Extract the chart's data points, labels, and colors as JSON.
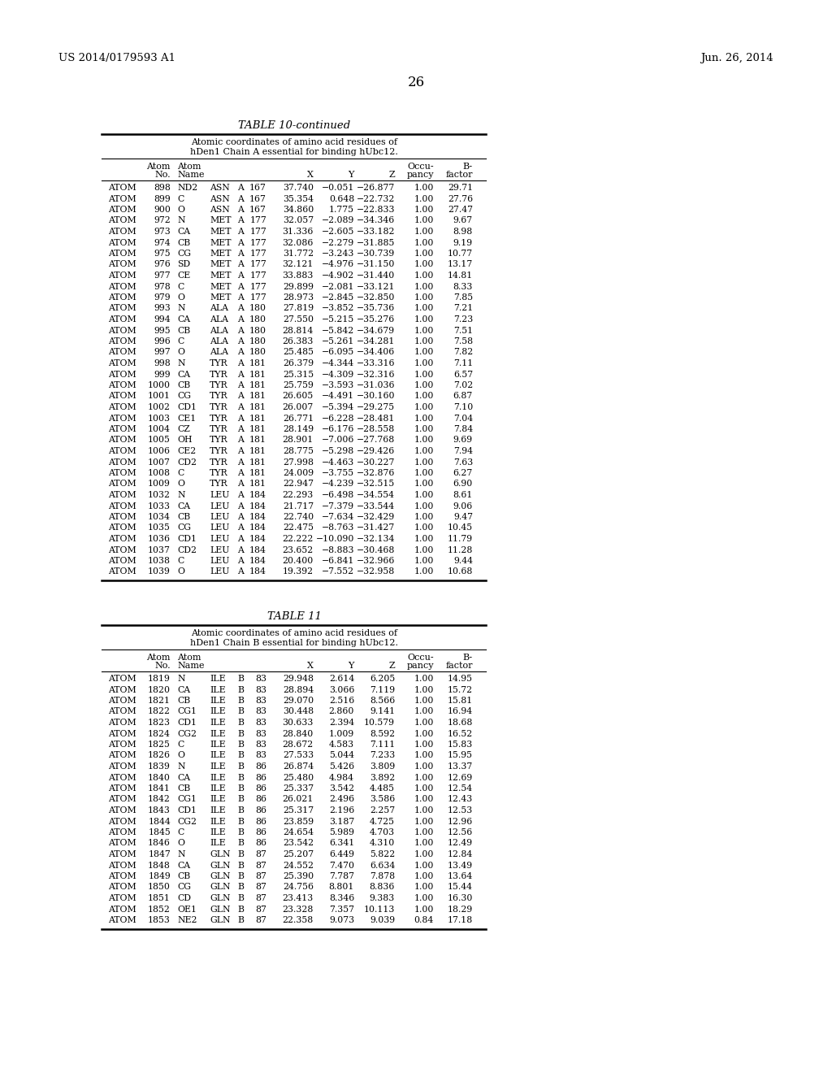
{
  "header_left": "US 2014/0179593 A1",
  "header_right": "Jun. 26, 2014",
  "page_number": "26",
  "table1_title": "TABLE 10-continued",
  "table1_subtitle1": "Atomic coordinates of amino acid residues of",
  "table1_subtitle2": "hDen1 Chain A essential for binding hUbc12.",
  "table2_title": "TABLE 11",
  "table2_subtitle1": "Atomic coordinates of amino acid residues of",
  "table2_subtitle2": "hDen1 Chain B essential for binding hUbc12.",
  "table1_data": [
    [
      "ATOM",
      "898",
      "ND2",
      "ASN",
      "A",
      "167",
      "37.740",
      "−0.051",
      "−26.877",
      "1.00",
      "29.71"
    ],
    [
      "ATOM",
      "899",
      "C",
      "ASN",
      "A",
      "167",
      "35.354",
      "0.648",
      "−22.732",
      "1.00",
      "27.76"
    ],
    [
      "ATOM",
      "900",
      "O",
      "ASN",
      "A",
      "167",
      "34.860",
      "1.775",
      "−22.833",
      "1.00",
      "27.47"
    ],
    [
      "ATOM",
      "972",
      "N",
      "MET",
      "A",
      "177",
      "32.057",
      "−2.089",
      "−34.346",
      "1.00",
      "9.67"
    ],
    [
      "ATOM",
      "973",
      "CA",
      "MET",
      "A",
      "177",
      "31.336",
      "−2.605",
      "−33.182",
      "1.00",
      "8.98"
    ],
    [
      "ATOM",
      "974",
      "CB",
      "MET",
      "A",
      "177",
      "32.086",
      "−2.279",
      "−31.885",
      "1.00",
      "9.19"
    ],
    [
      "ATOM",
      "975",
      "CG",
      "MET",
      "A",
      "177",
      "31.772",
      "−3.243",
      "−30.739",
      "1.00",
      "10.77"
    ],
    [
      "ATOM",
      "976",
      "SD",
      "MET",
      "A",
      "177",
      "32.121",
      "−4.976",
      "−31.150",
      "1.00",
      "13.17"
    ],
    [
      "ATOM",
      "977",
      "CE",
      "MET",
      "A",
      "177",
      "33.883",
      "−4.902",
      "−31.440",
      "1.00",
      "14.81"
    ],
    [
      "ATOM",
      "978",
      "C",
      "MET",
      "A",
      "177",
      "29.899",
      "−2.081",
      "−33.121",
      "1.00",
      "8.33"
    ],
    [
      "ATOM",
      "979",
      "O",
      "MET",
      "A",
      "177",
      "28.973",
      "−2.845",
      "−32.850",
      "1.00",
      "7.85"
    ],
    [
      "ATOM",
      "993",
      "N",
      "ALA",
      "A",
      "180",
      "27.819",
      "−3.852",
      "−35.736",
      "1.00",
      "7.21"
    ],
    [
      "ATOM",
      "994",
      "CA",
      "ALA",
      "A",
      "180",
      "27.550",
      "−5.215",
      "−35.276",
      "1.00",
      "7.23"
    ],
    [
      "ATOM",
      "995",
      "CB",
      "ALA",
      "A",
      "180",
      "28.814",
      "−5.842",
      "−34.679",
      "1.00",
      "7.51"
    ],
    [
      "ATOM",
      "996",
      "C",
      "ALA",
      "A",
      "180",
      "26.383",
      "−5.261",
      "−34.281",
      "1.00",
      "7.58"
    ],
    [
      "ATOM",
      "997",
      "O",
      "ALA",
      "A",
      "180",
      "25.485",
      "−6.095",
      "−34.406",
      "1.00",
      "7.82"
    ],
    [
      "ATOM",
      "998",
      "N",
      "TYR",
      "A",
      "181",
      "26.379",
      "−4.344",
      "−33.316",
      "1.00",
      "7.11"
    ],
    [
      "ATOM",
      "999",
      "CA",
      "TYR",
      "A",
      "181",
      "25.315",
      "−4.309",
      "−32.316",
      "1.00",
      "6.57"
    ],
    [
      "ATOM",
      "1000",
      "CB",
      "TYR",
      "A",
      "181",
      "25.759",
      "−3.593",
      "−31.036",
      "1.00",
      "7.02"
    ],
    [
      "ATOM",
      "1001",
      "CG",
      "TYR",
      "A",
      "181",
      "26.605",
      "−4.491",
      "−30.160",
      "1.00",
      "6.87"
    ],
    [
      "ATOM",
      "1002",
      "CD1",
      "TYR",
      "A",
      "181",
      "26.007",
      "−5.394",
      "−29.275",
      "1.00",
      "7.10"
    ],
    [
      "ATOM",
      "1003",
      "CE1",
      "TYR",
      "A",
      "181",
      "26.771",
      "−6.228",
      "−28.481",
      "1.00",
      "7.04"
    ],
    [
      "ATOM",
      "1004",
      "CZ",
      "TYR",
      "A",
      "181",
      "28.149",
      "−6.176",
      "−28.558",
      "1.00",
      "7.84"
    ],
    [
      "ATOM",
      "1005",
      "OH",
      "TYR",
      "A",
      "181",
      "28.901",
      "−7.006",
      "−27.768",
      "1.00",
      "9.69"
    ],
    [
      "ATOM",
      "1006",
      "CE2",
      "TYR",
      "A",
      "181",
      "28.775",
      "−5.298",
      "−29.426",
      "1.00",
      "7.94"
    ],
    [
      "ATOM",
      "1007",
      "CD2",
      "TYR",
      "A",
      "181",
      "27.998",
      "−4.463",
      "−30.227",
      "1.00",
      "7.63"
    ],
    [
      "ATOM",
      "1008",
      "C",
      "TYR",
      "A",
      "181",
      "24.009",
      "−3.755",
      "−32.876",
      "1.00",
      "6.27"
    ],
    [
      "ATOM",
      "1009",
      "O",
      "TYR",
      "A",
      "181",
      "22.947",
      "−4.239",
      "−32.515",
      "1.00",
      "6.90"
    ],
    [
      "ATOM",
      "1032",
      "N",
      "LEU",
      "A",
      "184",
      "22.293",
      "−6.498",
      "−34.554",
      "1.00",
      "8.61"
    ],
    [
      "ATOM",
      "1033",
      "CA",
      "LEU",
      "A",
      "184",
      "21.717",
      "−7.379",
      "−33.544",
      "1.00",
      "9.06"
    ],
    [
      "ATOM",
      "1034",
      "CB",
      "LEU",
      "A",
      "184",
      "22.740",
      "−7.634",
      "−32.429",
      "1.00",
      "9.47"
    ],
    [
      "ATOM",
      "1035",
      "CG",
      "LEU",
      "A",
      "184",
      "22.475",
      "−8.763",
      "−31.427",
      "1.00",
      "10.45"
    ],
    [
      "ATOM",
      "1036",
      "CD1",
      "LEU",
      "A",
      "184",
      "22.222",
      "−10.090",
      "−32.134",
      "1.00",
      "11.79"
    ],
    [
      "ATOM",
      "1037",
      "CD2",
      "LEU",
      "A",
      "184",
      "23.652",
      "−8.883",
      "−30.468",
      "1.00",
      "11.28"
    ],
    [
      "ATOM",
      "1038",
      "C",
      "LEU",
      "A",
      "184",
      "20.400",
      "−6.841",
      "−32.966",
      "1.00",
      "9.44"
    ],
    [
      "ATOM",
      "1039",
      "O",
      "LEU",
      "A",
      "184",
      "19.392",
      "−7.552",
      "−32.958",
      "1.00",
      "10.68"
    ]
  ],
  "table2_data": [
    [
      "ATOM",
      "1819",
      "N",
      "ILE",
      "B",
      "83",
      "29.948",
      "2.614",
      "6.205",
      "1.00",
      "14.95"
    ],
    [
      "ATOM",
      "1820",
      "CA",
      "ILE",
      "B",
      "83",
      "28.894",
      "3.066",
      "7.119",
      "1.00",
      "15.72"
    ],
    [
      "ATOM",
      "1821",
      "CB",
      "ILE",
      "B",
      "83",
      "29.070",
      "2.516",
      "8.566",
      "1.00",
      "15.81"
    ],
    [
      "ATOM",
      "1822",
      "CG1",
      "ILE",
      "B",
      "83",
      "30.448",
      "2.860",
      "9.141",
      "1.00",
      "16.94"
    ],
    [
      "ATOM",
      "1823",
      "CD1",
      "ILE",
      "B",
      "83",
      "30.633",
      "2.394",
      "10.579",
      "1.00",
      "18.68"
    ],
    [
      "ATOM",
      "1824",
      "CG2",
      "ILE",
      "B",
      "83",
      "28.840",
      "1.009",
      "8.592",
      "1.00",
      "16.52"
    ],
    [
      "ATOM",
      "1825",
      "C",
      "ILE",
      "B",
      "83",
      "28.672",
      "4.583",
      "7.111",
      "1.00",
      "15.83"
    ],
    [
      "ATOM",
      "1826",
      "O",
      "ILE",
      "B",
      "83",
      "27.533",
      "5.044",
      "7.233",
      "1.00",
      "15.95"
    ],
    [
      "ATOM",
      "1839",
      "N",
      "ILE",
      "B",
      "86",
      "26.874",
      "5.426",
      "3.809",
      "1.00",
      "13.37"
    ],
    [
      "ATOM",
      "1840",
      "CA",
      "ILE",
      "B",
      "86",
      "25.480",
      "4.984",
      "3.892",
      "1.00",
      "12.69"
    ],
    [
      "ATOM",
      "1841",
      "CB",
      "ILE",
      "B",
      "86",
      "25.337",
      "3.542",
      "4.485",
      "1.00",
      "12.54"
    ],
    [
      "ATOM",
      "1842",
      "CG1",
      "ILE",
      "B",
      "86",
      "26.021",
      "2.496",
      "3.586",
      "1.00",
      "12.43"
    ],
    [
      "ATOM",
      "1843",
      "CD1",
      "ILE",
      "B",
      "86",
      "25.317",
      "2.196",
      "2.257",
      "1.00",
      "12.53"
    ],
    [
      "ATOM",
      "1844",
      "CG2",
      "ILE",
      "B",
      "86",
      "23.859",
      "3.187",
      "4.725",
      "1.00",
      "12.96"
    ],
    [
      "ATOM",
      "1845",
      "C",
      "ILE",
      "B",
      "86",
      "24.654",
      "5.989",
      "4.703",
      "1.00",
      "12.56"
    ],
    [
      "ATOM",
      "1846",
      "O",
      "ILE",
      "B",
      "86",
      "23.542",
      "6.341",
      "4.310",
      "1.00",
      "12.49"
    ],
    [
      "ATOM",
      "1847",
      "N",
      "GLN",
      "B",
      "87",
      "25.207",
      "6.449",
      "5.822",
      "1.00",
      "12.84"
    ],
    [
      "ATOM",
      "1848",
      "CA",
      "GLN",
      "B",
      "87",
      "24.552",
      "7.470",
      "6.634",
      "1.00",
      "13.49"
    ],
    [
      "ATOM",
      "1849",
      "CB",
      "GLN",
      "B",
      "87",
      "25.390",
      "7.787",
      "7.878",
      "1.00",
      "13.64"
    ],
    [
      "ATOM",
      "1850",
      "CG",
      "GLN",
      "B",
      "87",
      "24.756",
      "8.801",
      "8.836",
      "1.00",
      "15.44"
    ],
    [
      "ATOM",
      "1851",
      "CD",
      "GLN",
      "B",
      "87",
      "23.413",
      "8.346",
      "9.383",
      "1.00",
      "16.30"
    ],
    [
      "ATOM",
      "1852",
      "OE1",
      "GLN",
      "B",
      "87",
      "23.328",
      "7.357",
      "10.113",
      "1.00",
      "18.29"
    ],
    [
      "ATOM",
      "1853",
      "NE2",
      "GLN",
      "B",
      "87",
      "22.358",
      "9.073",
      "9.039",
      "0.84",
      "17.18"
    ]
  ],
  "col_header_row1": [
    "",
    "Atom",
    "Atom",
    "",
    "",
    "",
    "",
    "",
    "Occu-",
    "B-"
  ],
  "col_header_row2": [
    "",
    "No.",
    "Name",
    "",
    "",
    "X",
    "Y",
    "Z",
    "pancy",
    "factor"
  ]
}
